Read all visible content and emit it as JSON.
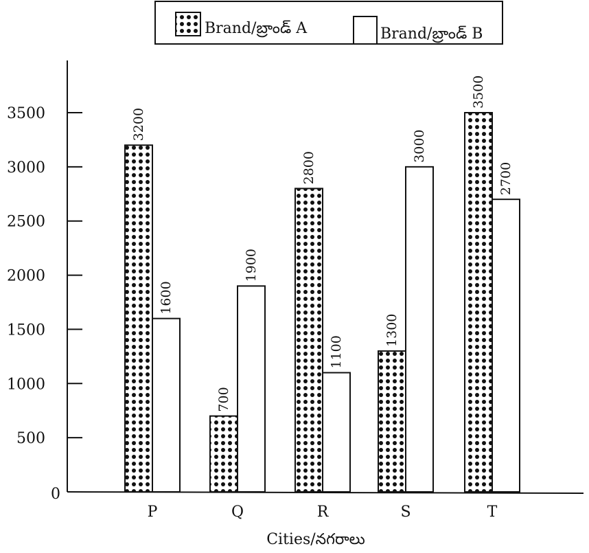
{
  "chart_data": {
    "type": "bar",
    "categories": [
      "P",
      "Q",
      "R",
      "S",
      "T"
    ],
    "series": [
      {
        "name": "Brand/బ్రాండ్ A",
        "values": [
          3200,
          700,
          2800,
          1300,
          3500
        ],
        "fill": "dotted"
      },
      {
        "name": "Brand/బ్రాండ్ B",
        "values": [
          1600,
          1900,
          1100,
          3000,
          2700
        ],
        "fill": "plain"
      }
    ],
    "data_labels": [
      [
        "3200",
        "700",
        "2800",
        "1300",
        "3500"
      ],
      [
        "1600",
        "1900",
        "1100",
        "3000",
        "2700"
      ]
    ],
    "xlabel": "Cities/నగరాలు",
    "ylabel": "",
    "ylim": [
      0,
      3500
    ],
    "yticks": [
      0,
      500,
      1000,
      1500,
      2000,
      2500,
      3000,
      3500
    ],
    "grid": false,
    "legend_position": "top",
    "colors": {
      "bar_stroke": "#111111",
      "dot": "#111111",
      "background": "#ffffff"
    }
  }
}
